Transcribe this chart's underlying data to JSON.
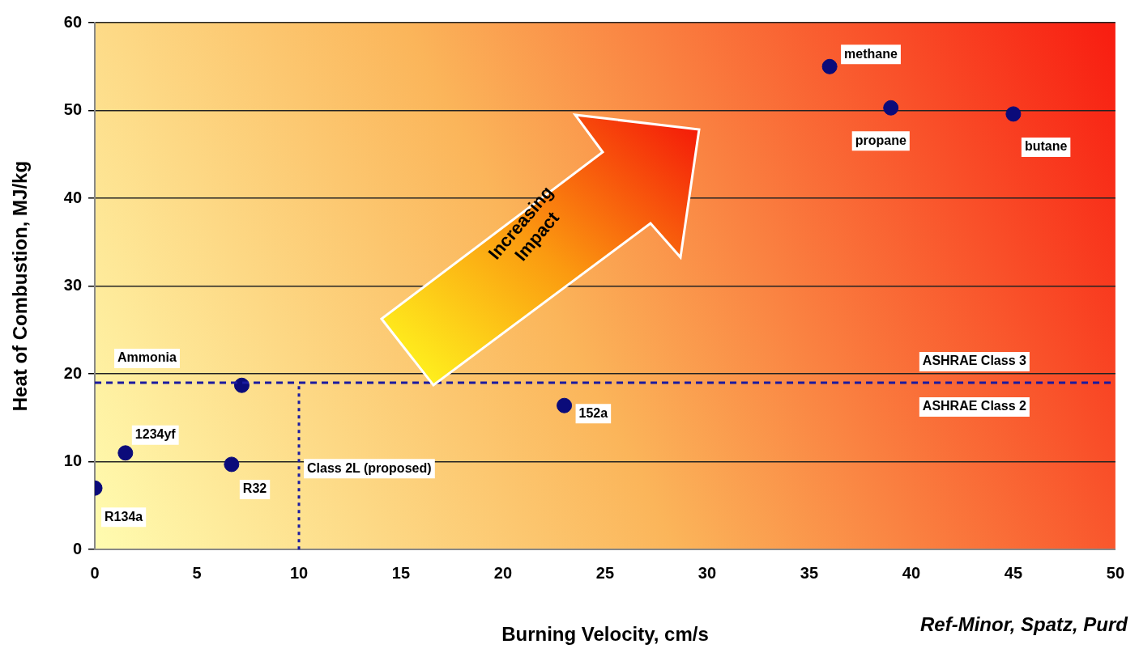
{
  "chart_data": {
    "type": "scatter",
    "xlabel": "Burning Velocity, cm/s",
    "ylabel": "Heat of Combustion, MJ/kg",
    "series": [
      {
        "color": "#0b0b7a",
        "x": [
          0,
          1.5,
          6.7,
          7.2,
          23,
          36,
          39,
          45
        ],
        "values": [
          7,
          11,
          9.7,
          18.7,
          16.4,
          55,
          50.3,
          49.6
        ]
      }
    ],
    "xlim": [
      0,
      50
    ],
    "xticks": [
      0,
      5,
      10,
      15,
      20,
      25,
      30,
      35,
      40,
      45,
      50
    ],
    "ylim": [
      0,
      60
    ],
    "yticks": [
      0,
      10,
      20,
      30,
      40,
      50,
      60
    ],
    "grid": "y",
    "legend": false,
    "marker": "circle",
    "ref_lines": [
      {
        "axis": "y",
        "value": 19,
        "label": "ASHRAE Class 3",
        "color": "#1a1aa0",
        "line_style": "dashed"
      },
      {
        "axis": "x",
        "value": 10,
        "label": "Class 2L (proposed)",
        "color": "#1a1aa0",
        "line_style": "dotted"
      }
    ],
    "annotations": [
      {
        "text": "R134a",
        "x": 0,
        "y": 7
      },
      {
        "text": "1234yf",
        "x": 1.5,
        "y": 11
      },
      {
        "text": "R32",
        "x": 6.7,
        "y": 9.7
      },
      {
        "text": "152a",
        "x": 23,
        "y": 16.4
      },
      {
        "text": "methane",
        "x": 36,
        "y": 55
      },
      {
        "text": "propane",
        "x": 39,
        "y": 50.3
      },
      {
        "text": "butane",
        "x": 45,
        "y": 49.6
      },
      "Increasing Impact",
      "ASHRAE Class 2",
      "Ref-Minor, Spatz, Purd",
      "Ammonia"
    ]
  }
}
